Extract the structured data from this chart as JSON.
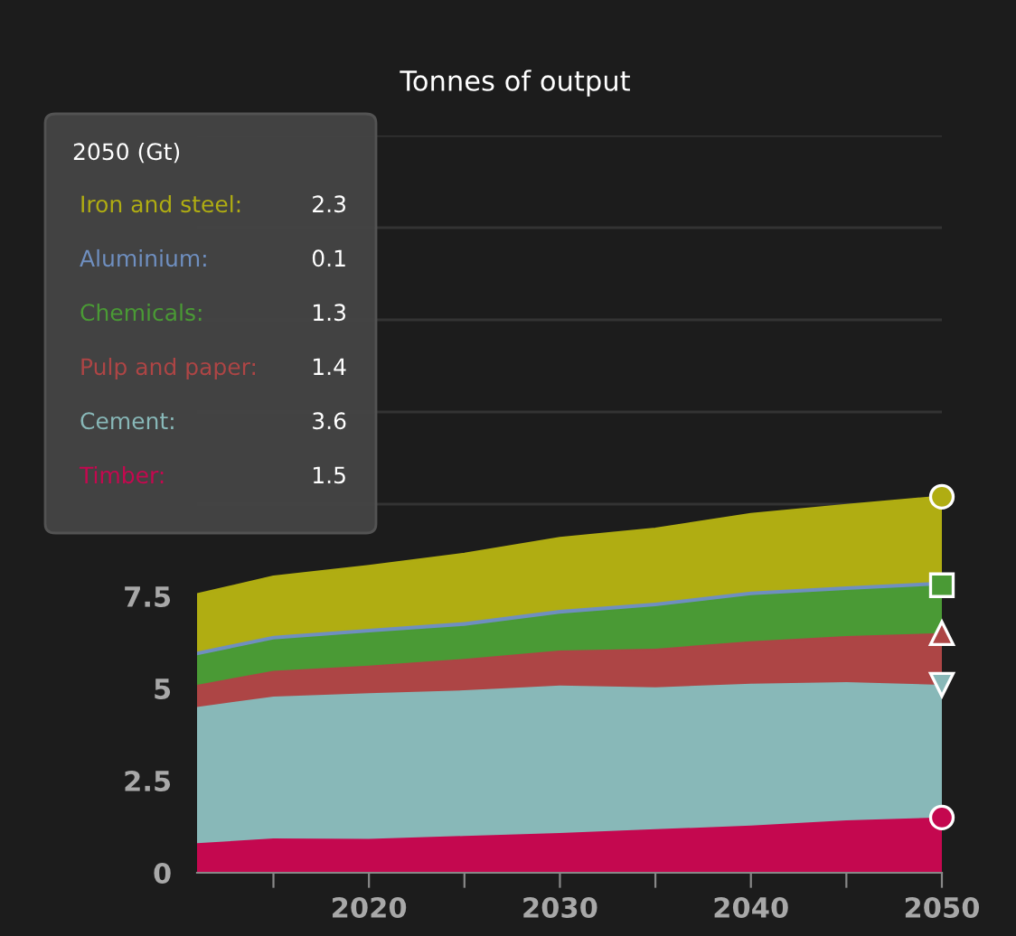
{
  "chart_data": {
    "type": "area",
    "stacked": true,
    "title": "Tonnes of output",
    "annotations": [
      "2050 (Gt)",
      "2.3",
      "0.1",
      "1.3",
      "1.4",
      "3.6",
      "1.5"
    ],
    "x": [
      2011,
      2015,
      2020,
      2025,
      2030,
      2035,
      2040,
      2045,
      2050
    ],
    "series": [
      {
        "name": "Timber:",
        "color": "#c4084f",
        "values": [
          0.8,
          0.93,
          0.92,
          1.0,
          1.08,
          1.18,
          1.28,
          1.42,
          1.5
        ]
      },
      {
        "name": "Cement:",
        "color": "#88b8b8",
        "values": [
          3.7,
          3.85,
          3.95,
          3.95,
          4.0,
          3.85,
          3.85,
          3.75,
          3.6
        ]
      },
      {
        "name": "Pulp and paper:",
        "color": "#ad4545",
        "values": [
          0.6,
          0.7,
          0.75,
          0.85,
          0.95,
          1.05,
          1.15,
          1.25,
          1.4
        ]
      },
      {
        "name": "Chemicals:",
        "color": "#4a9a35",
        "values": [
          0.8,
          0.85,
          0.9,
          0.9,
          1.0,
          1.15,
          1.25,
          1.25,
          1.3
        ]
      },
      {
        "name": "Aluminium:",
        "color": "#6f8fc0",
        "values": [
          0.1,
          0.1,
          0.1,
          0.1,
          0.1,
          0.1,
          0.1,
          0.1,
          0.1
        ]
      },
      {
        "name": "Iron and steel:",
        "color": "#b0ad12",
        "values": [
          1.55,
          1.6,
          1.7,
          1.85,
          1.95,
          2.0,
          2.1,
          2.2,
          2.3
        ]
      }
    ],
    "xlim": [
      2011,
      2050
    ],
    "xticks": [
      {
        "value": 2015,
        "label": null
      },
      2020,
      {
        "value": 2025,
        "label": null
      },
      2030,
      {
        "value": 2035,
        "label": null
      },
      2040,
      {
        "value": 2045,
        "label": null
      },
      2050
    ],
    "ylim": [
      0,
      20
    ],
    "yticks": [
      0,
      2.5,
      5,
      7.5,
      {
        "value": 10,
        "label": null
      },
      {
        "value": 12.5,
        "label": null
      },
      {
        "value": 15,
        "label": null
      },
      {
        "value": 17.5,
        "label": null
      },
      {
        "value": 20,
        "label": null
      }
    ],
    "grid": "y",
    "legend": false
  }
}
